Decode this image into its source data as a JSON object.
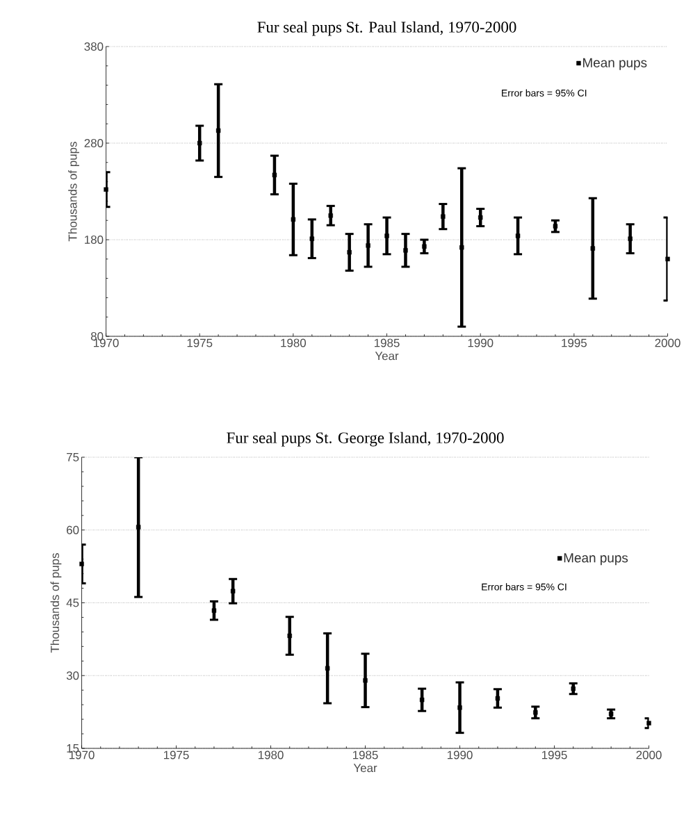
{
  "chart_data": [
    {
      "type": "scatter",
      "title": "Fur seal pups St. Paul Island, 1970-2000",
      "xlabel": "Year",
      "ylabel": "Thousands of pups",
      "x": [
        1970,
        1975,
        1976,
        1979,
        1980,
        1981,
        1982,
        1983,
        1984,
        1985,
        1986,
        1987,
        1988,
        1989,
        1990,
        1992,
        1994,
        1996,
        1998,
        2000
      ],
      "series": [
        {
          "name": "Mean pups",
          "color": "#000000",
          "values": [
            232,
            280,
            293,
            247,
            201,
            181,
            205,
            167,
            174,
            184,
            169,
            173,
            204,
            172,
            203,
            184,
            194,
            171,
            181,
            160
          ],
          "errors": [
            18,
            18,
            48,
            20,
            37,
            20,
            10,
            19,
            22,
            19,
            17,
            7,
            13,
            82,
            9,
            19,
            6,
            52,
            15,
            43
          ]
        }
      ],
      "xlim": [
        1970,
        2000
      ],
      "ylim": [
        80,
        380
      ],
      "xticks": [
        1970,
        1975,
        1980,
        1985,
        1990,
        1995,
        2000
      ],
      "yticks": [
        80,
        180,
        280,
        380
      ],
      "grid": "y",
      "legend": "top right",
      "marker": "square",
      "annotations": [
        "Error bars = 95% CI"
      ]
    },
    {
      "type": "scatter",
      "title": "Fur seal pups St. George Island, 1970-2000",
      "xlabel": "Year",
      "ylabel": "Thousands of pups",
      "x": [
        1970,
        1973,
        1977,
        1978,
        1981,
        1983,
        1985,
        1988,
        1990,
        1992,
        1994,
        1996,
        1998,
        2000
      ],
      "series": [
        {
          "name": "Mean pups",
          "color": "#000000",
          "values": [
            53,
            60.6,
            43.4,
            47.4,
            38.2,
            31.5,
            29,
            25,
            23.4,
            25.3,
            22.4,
            27.3,
            22.1,
            20.2
          ],
          "errors": [
            4,
            14.4,
            1.9,
            2.5,
            3.9,
            7.2,
            5.5,
            2.3,
            5.2,
            1.9,
            1.2,
            1.1,
            0.9,
            1
          ]
        }
      ],
      "xlim": [
        1970,
        2000
      ],
      "ylim": [
        15,
        75
      ],
      "xticks": [
        1970,
        1975,
        1980,
        1985,
        1990,
        1995,
        2000
      ],
      "yticks": [
        15,
        30,
        45,
        60,
        75
      ],
      "grid": "y",
      "legend": "right",
      "marker": "square",
      "annotations": [
        "Error bars = 95% CI"
      ]
    }
  ]
}
